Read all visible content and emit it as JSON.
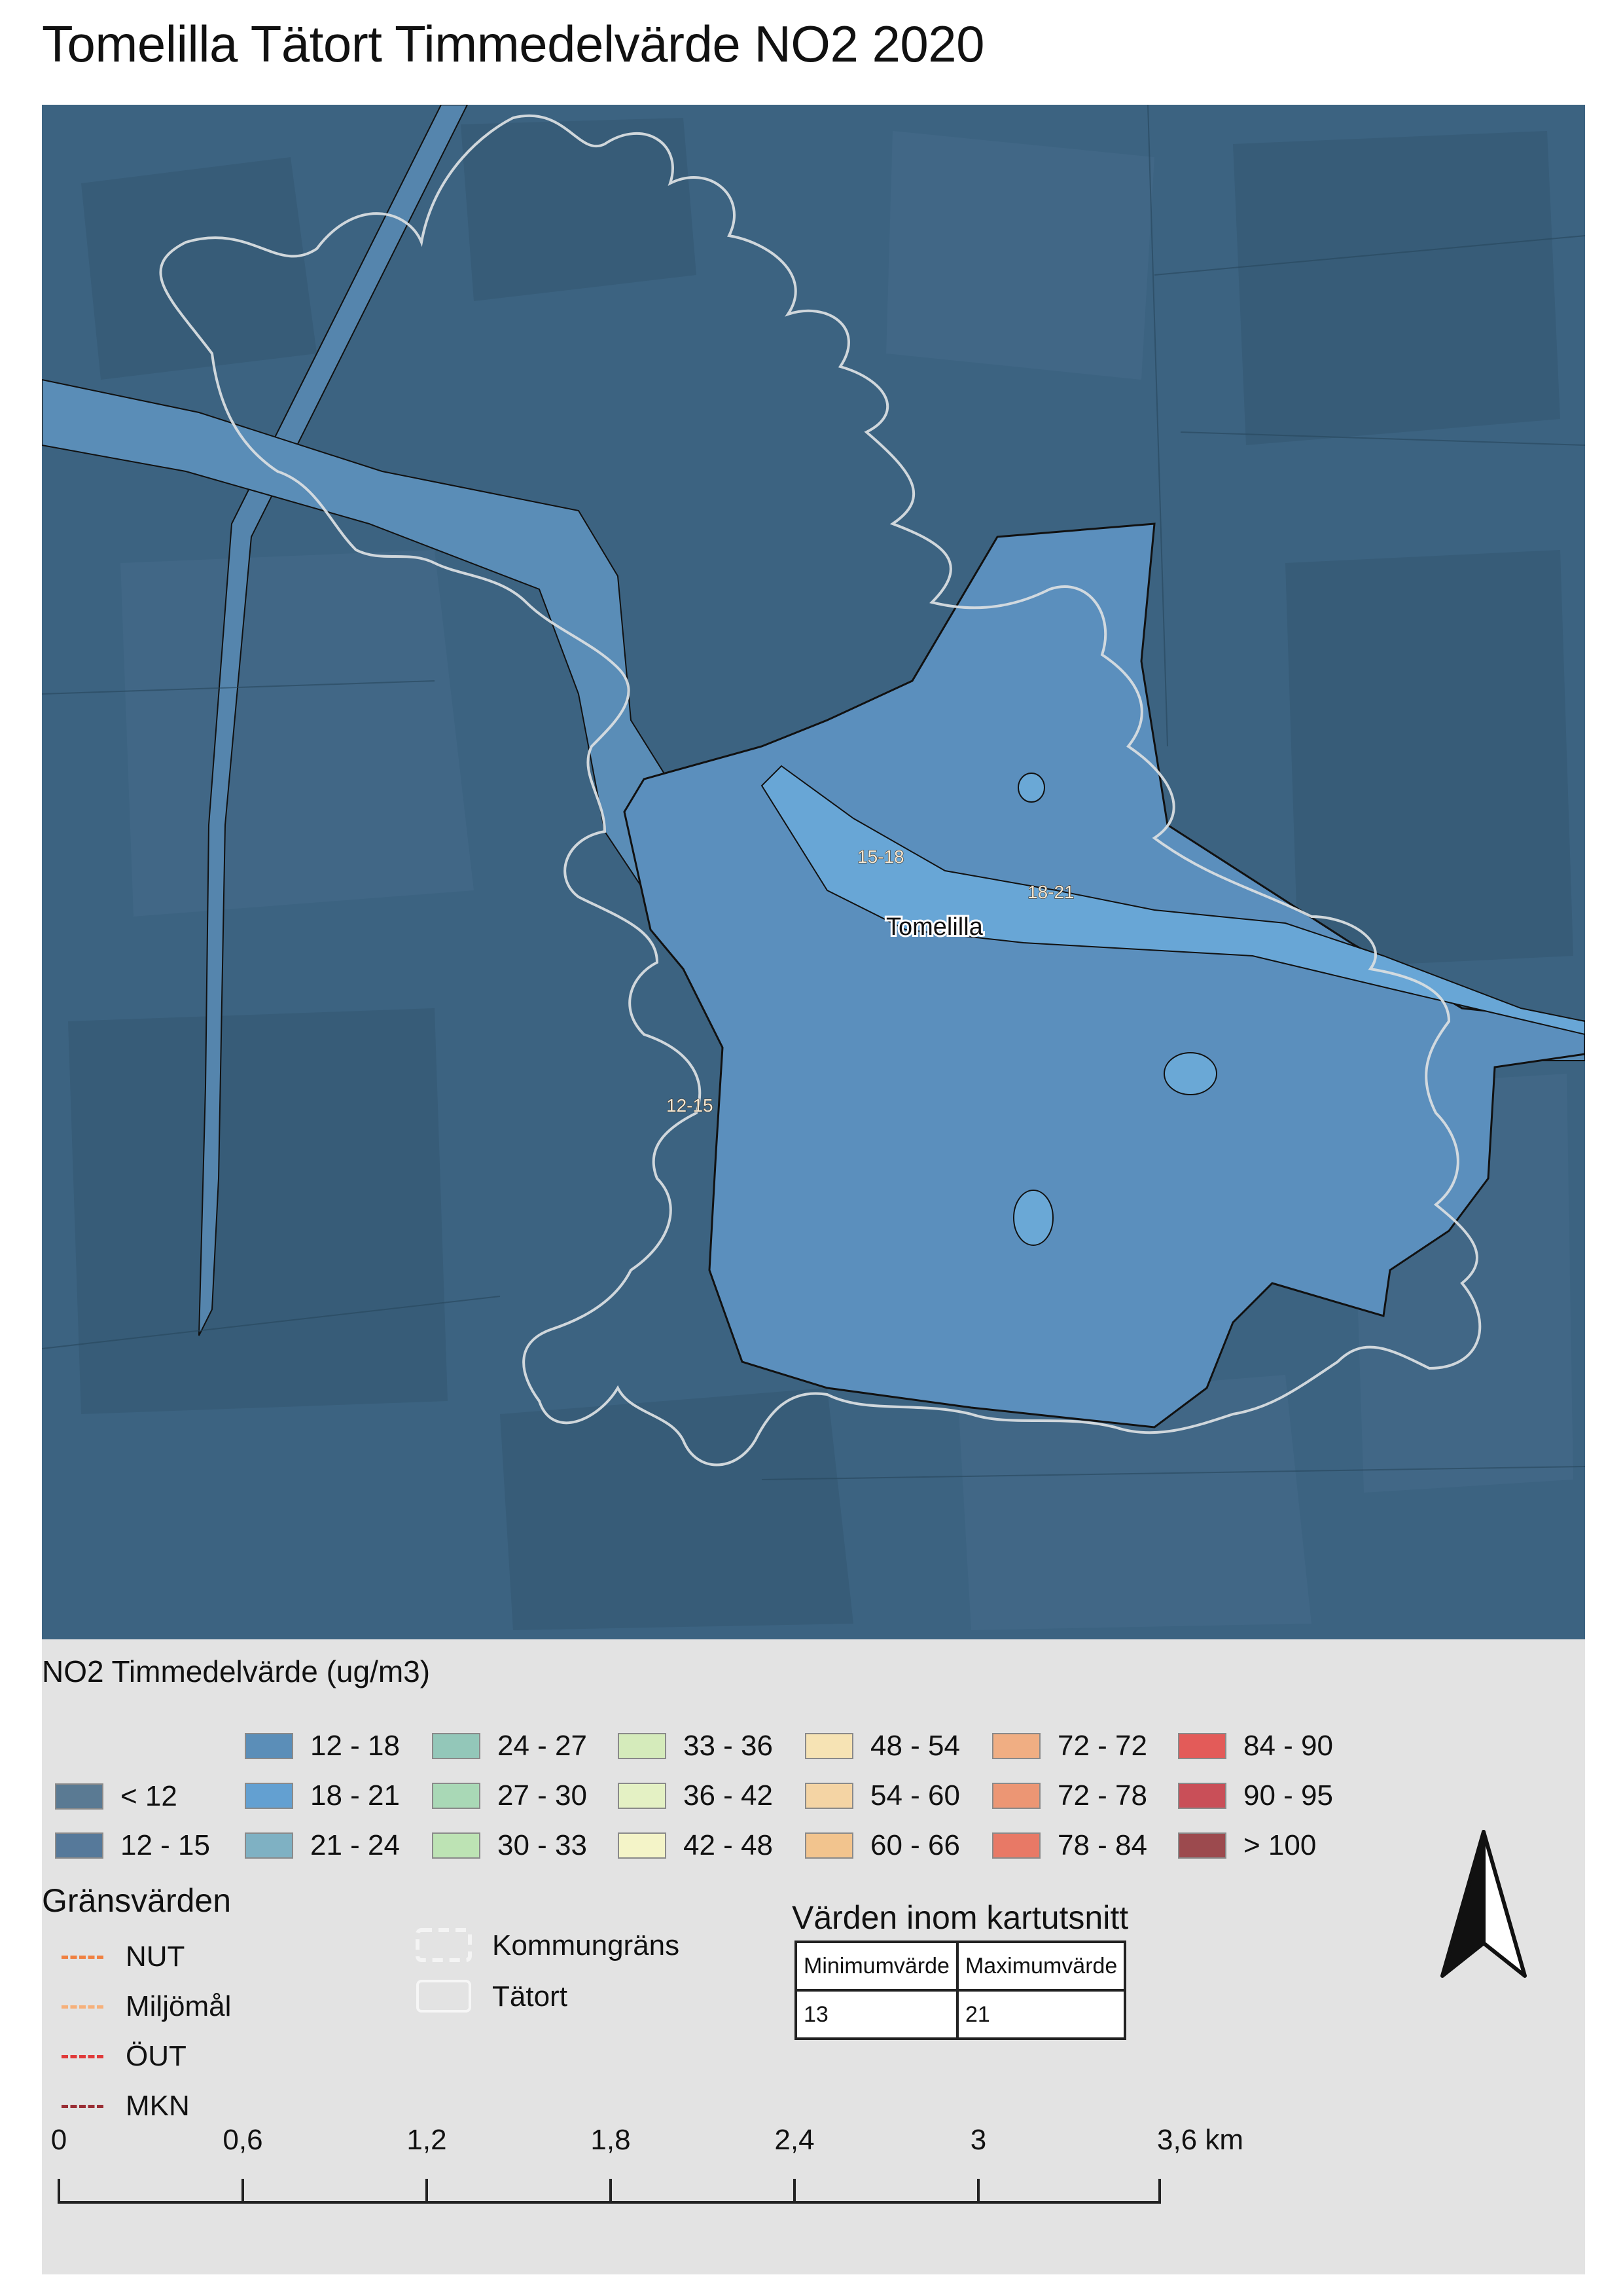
{
  "title": "Tomelilla Tätort Timmedelvärde NO2 2020",
  "map": {
    "labels": {
      "zone_a": "15-18",
      "zone_b": "18-21",
      "zone_c": "12-15",
      "town": "Tomelilla"
    },
    "colors": {
      "background": "#3c6381",
      "field_dark": "#36586f",
      "road_zone": "#5c8fbb",
      "town_fill": "#5b90c0",
      "tatort_outline": "#d8dde0",
      "zone_outline": "#111111"
    }
  },
  "legend": {
    "title": "NO2 Timmedelvärde (ug/m3)",
    "classes": [
      {
        "label": "< 12",
        "color": "#5a7a93"
      },
      {
        "label": "12 - 15",
        "color": "#56799a"
      },
      {
        "label": "12 - 18",
        "color": "#5b8eb8"
      },
      {
        "label": "18 - 21",
        "color": "#63a0d1"
      },
      {
        "label": "21 - 24",
        "color": "#7fb1c3"
      },
      {
        "label": "24 - 27",
        "color": "#93c7b9"
      },
      {
        "label": "27 - 30",
        "color": "#a9d8b6"
      },
      {
        "label": "30 - 33",
        "color": "#bde3b4"
      },
      {
        "label": "33 - 36",
        "color": "#d5ebbb"
      },
      {
        "label": "36 - 42",
        "color": "#e4f1c4"
      },
      {
        "label": "42 - 48",
        "color": "#f4f4c8"
      },
      {
        "label": "48 - 54",
        "color": "#f6e3b4"
      },
      {
        "label": "54 - 60",
        "color": "#f4d4a4"
      },
      {
        "label": "60 - 66",
        "color": "#f2c48e"
      },
      {
        "label": "72 - 72",
        "color": "#f0ae83"
      },
      {
        "label": "72 - 78",
        "color": "#ec9674"
      },
      {
        "label": "78 - 84",
        "color": "#e87966"
      },
      {
        "label": "84 - 90",
        "color": "#e35b59"
      },
      {
        "label": "90 - 95",
        "color": "#c94f58"
      },
      {
        "label": "> 100",
        "color": "#9c4a4e"
      }
    ]
  },
  "limits": {
    "title": "Gränsvärden",
    "items": [
      {
        "label": "NUT",
        "color": "#f08040"
      },
      {
        "label": "Miljömål",
        "color": "#f6b07a"
      },
      {
        "label": "ÖUT",
        "color": "#e03a3a"
      },
      {
        "label": "MKN",
        "color": "#9a2f35"
      }
    ]
  },
  "boundaries": {
    "kommun": "Kommungräns",
    "tatort": "Tätort"
  },
  "stats": {
    "title": "Värden inom kartutsnitt",
    "col_min": "Minimumvärde",
    "col_max": "Maximumvärde",
    "min": "13",
    "max": "21"
  },
  "scale": {
    "labels": [
      "0",
      "0,6",
      "1,2",
      "1,8",
      "2,4",
      "3",
      "3,6 km"
    ]
  }
}
